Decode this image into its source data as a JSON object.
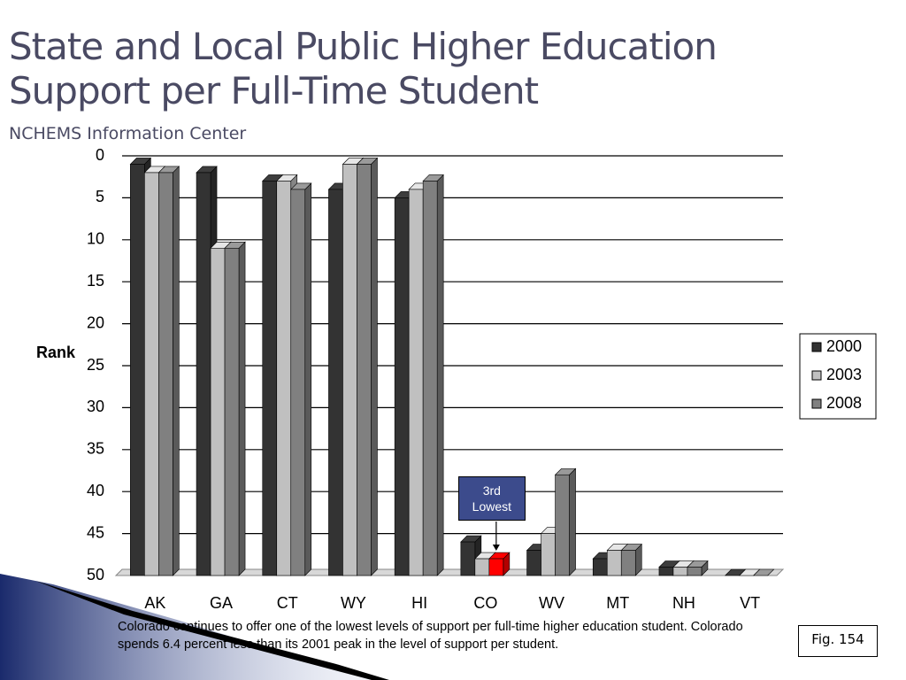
{
  "chart_data": {
    "type": "bar",
    "title": "State and Local Public Higher Education Support per Full-Time Student",
    "subtitle": "NCHEMS Information Center",
    "y_label": "Rank",
    "categories": [
      "AK",
      "GA",
      "CT",
      "WY",
      "HI",
      "CO",
      "WV",
      "MT",
      "NH",
      "VT"
    ],
    "series": [
      {
        "name": "2000",
        "color": "#333333",
        "values": [
          1,
          2,
          3,
          4,
          5,
          46,
          47,
          48,
          49,
          50
        ]
      },
      {
        "name": "2003",
        "color": "#c0c0c0",
        "values": [
          2,
          11,
          3,
          1,
          4,
          48,
          45,
          47,
          49,
          50
        ]
      },
      {
        "name": "2008",
        "color": "#808080",
        "values": [
          2,
          11,
          4,
          1,
          3,
          48,
          38,
          47,
          49,
          50
        ]
      }
    ],
    "highlight": {
      "series": "2008",
      "category": "CO",
      "color": "#ff0000"
    },
    "annotation": {
      "text": "3rd Lowest",
      "series": "2008",
      "category": "CO"
    },
    "ylim": [
      0,
      50
    ],
    "y_inverted": true,
    "yticks": [
      0,
      5,
      10,
      15,
      20,
      25,
      30,
      35,
      40,
      45,
      50
    ],
    "grid": true,
    "legend": "right",
    "caption": "Colorado continues to offer one of the lowest levels of support per full-time higher education student. Colorado spends 6.4 percent less than its 2001 peak in the level of support per student.",
    "figure_label": "Fig. 154"
  }
}
